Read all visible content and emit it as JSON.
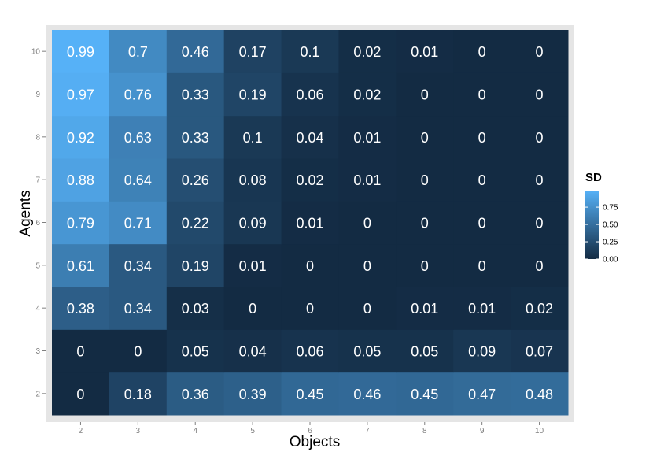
{
  "chart_data": {
    "type": "heatmap",
    "xlabel": "Objects",
    "ylabel": "Agents",
    "x": [
      2,
      3,
      4,
      5,
      6,
      7,
      8,
      9,
      10
    ],
    "y": [
      2,
      3,
      4,
      5,
      6,
      7,
      8,
      9,
      10
    ],
    "values": [
      [
        "0",
        "0.18",
        "0.36",
        "0.39",
        "0.45",
        "0.46",
        "0.45",
        "0.47",
        "0.48"
      ],
      [
        "0",
        "0",
        "0.05",
        "0.04",
        "0.06",
        "0.05",
        "0.05",
        "0.09",
        "0.07"
      ],
      [
        "0.38",
        "0.34",
        "0.03",
        "0",
        "0",
        "0",
        "0.01",
        "0.01",
        "0.02"
      ],
      [
        "0.61",
        "0.34",
        "0.19",
        "0.01",
        "0",
        "0",
        "0",
        "0",
        "0"
      ],
      [
        "0.79",
        "0.71",
        "0.22",
        "0.09",
        "0.01",
        "0",
        "0",
        "0",
        "0"
      ],
      [
        "0.88",
        "0.64",
        "0.26",
        "0.08",
        "0.02",
        "0.01",
        "0",
        "0",
        "0"
      ],
      [
        "0.92",
        "0.63",
        "0.33",
        "0.1",
        "0.04",
        "0.01",
        "0",
        "0",
        "0"
      ],
      [
        "0.97",
        "0.76",
        "0.33",
        "0.19",
        "0.06",
        "0.02",
        "0",
        "0",
        "0"
      ],
      [
        "0.99",
        "0.7",
        "0.46",
        "0.17",
        "0.1",
        "0.02",
        "0.01",
        "0",
        "0"
      ]
    ],
    "legend": {
      "title": "SD",
      "position": "right",
      "ticks": [
        "0.00",
        "0.25",
        "0.50",
        "0.75"
      ],
      "range": [
        0,
        0.99
      ],
      "color_low": "#132b43",
      "color_high": "#56b1f7"
    },
    "panel_background": "#e5e5e5"
  }
}
